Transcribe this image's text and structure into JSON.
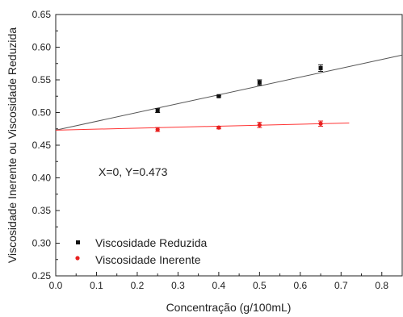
{
  "chart_data": {
    "type": "scatter",
    "xlabel": "Concentração (g/100mL)",
    "ylabel": "Viscosidade Inerente ou Viscosidade Reduzida",
    "xlim": [
      0.0,
      0.85
    ],
    "ylim": [
      0.25,
      0.65
    ],
    "x_ticks": [
      "0.0",
      "0.1",
      "0.2",
      "0.3",
      "0.4",
      "0.5",
      "0.6",
      "0.7",
      "0.8"
    ],
    "y_ticks": [
      "0.25",
      "0.30",
      "0.35",
      "0.40",
      "0.45",
      "0.50",
      "0.55",
      "0.60",
      "0.65"
    ],
    "grid": false,
    "legend_position": "bottom-left",
    "annotation": "X=0, Y=0.473",
    "series": [
      {
        "name": "Viscosidade Reduzida",
        "color": "#111111",
        "marker": "square",
        "x": [
          0.25,
          0.4,
          0.5,
          0.65
        ],
        "y": [
          0.503,
          0.525,
          0.546,
          0.568
        ],
        "err": [
          0.003,
          0.001,
          0.004,
          0.005
        ],
        "fit": {
          "x0": 0.0,
          "y0": 0.473,
          "x1": 0.85,
          "y1": 0.588,
          "color": "#555555"
        }
      },
      {
        "name": "Viscosidade Inerente",
        "color": "#e8201f",
        "marker": "circle",
        "x": [
          0.25,
          0.4,
          0.5,
          0.65
        ],
        "y": [
          0.474,
          0.477,
          0.481,
          0.483
        ],
        "err": [
          0.003,
          0.002,
          0.004,
          0.004
        ],
        "fit": {
          "x0": 0.0,
          "y0": 0.473,
          "x1": 0.72,
          "y1": 0.484,
          "color": "#ff3333"
        }
      }
    ]
  }
}
